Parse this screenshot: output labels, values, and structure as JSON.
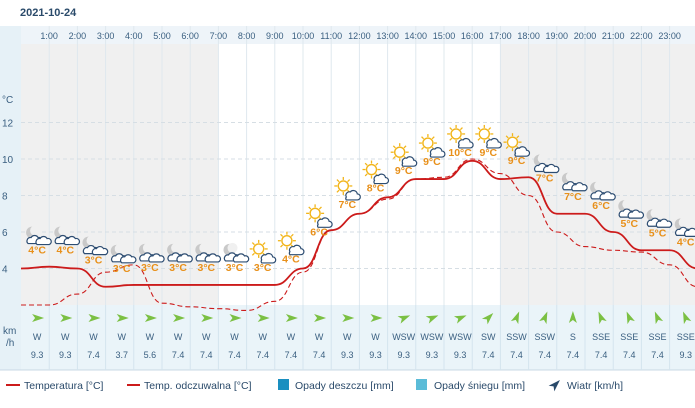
{
  "date": "2021-10-24",
  "chart_data": {
    "type": "line",
    "hours": [
      "1:00",
      "2:00",
      "3:00",
      "4:00",
      "5:00",
      "6:00",
      "7:00",
      "8:00",
      "9:00",
      "10:00",
      "11:00",
      "12:00",
      "13:00",
      "14:00",
      "15:00",
      "16:00",
      "17:00",
      "18:00",
      "19:00",
      "20:00",
      "21:00",
      "22:00",
      "23:00"
    ],
    "y_unit": "°C",
    "y_ticks": [
      4,
      6,
      8,
      10,
      12
    ],
    "ylim": [
      2,
      14
    ],
    "series": [
      {
        "name": "Temperatura [°C]",
        "color": "#cc1b1b",
        "x": [
          0,
          1,
          2,
          3,
          4,
          5,
          6,
          7,
          8,
          9,
          10,
          11,
          12,
          13,
          14,
          15,
          16,
          17,
          18,
          19,
          20,
          21,
          22,
          23,
          24
        ],
        "values": [
          4,
          4.1,
          4,
          3,
          3.1,
          3.1,
          3.1,
          3.1,
          3.1,
          3.1,
          4,
          6.1,
          7,
          7.9,
          8.9,
          8.9,
          9.9,
          8.9,
          9,
          7,
          7,
          6,
          5,
          5,
          4
        ]
      },
      {
        "name": "Temp. odczuwalna [°C]",
        "color": "#cc1b1b",
        "dash": true,
        "x": [
          0,
          1,
          2,
          3,
          4,
          5,
          6,
          7,
          8,
          9,
          10,
          11,
          12,
          13,
          14,
          15,
          16,
          17,
          18,
          19,
          20,
          21,
          22,
          23,
          24
        ],
        "values": [
          2,
          2,
          2.6,
          3.8,
          4.2,
          2.1,
          1.9,
          1.8,
          1.7,
          2.2,
          3.8,
          6.1,
          7,
          7.8,
          8.9,
          9,
          10,
          9.2,
          8,
          6,
          5.2,
          5,
          4.9,
          4.2,
          3
        ]
      }
    ],
    "hour_temp_labels": [
      "4°C",
      "4°C",
      "3°C",
      "3°C",
      "3°C",
      "3°C",
      "3°C",
      "3°C",
      "3°C",
      "4°C",
      "6°C",
      "7°C",
      "8°C",
      "9°C",
      "9°C",
      "10°C",
      "9°C",
      "9°C",
      "7°C",
      "7°C",
      "6°C",
      "5°C",
      "5°C",
      "4°C"
    ],
    "hour_icons": [
      "night-cloudy",
      "night-cloudy",
      "night-cloudy",
      "night-cloudy",
      "night-cloudy",
      "night-cloudy",
      "night-cloudy",
      "night-cloudy",
      "partly-sunny",
      "partly-sunny",
      "partly-sunny",
      "partly-sunny",
      "partly-sunny",
      "partly-sunny",
      "partly-sunny",
      "partly-sunny",
      "partly-sunny",
      "partly-sunny",
      "night-cloudy",
      "night-cloudy",
      "night-cloudy",
      "night-cloudy",
      "night-cloudy",
      "night-cloudy"
    ],
    "wind_unit": "km\n/h",
    "wind_directions": [
      "W",
      "W",
      "W",
      "W",
      "W",
      "W",
      "W",
      "W",
      "W",
      "W",
      "W",
      "W",
      "W",
      "WSW",
      "WSW",
      "WSW",
      "SW",
      "SSW",
      "SSW",
      "S",
      "SSE",
      "SSE",
      "SSE",
      "SSE"
    ],
    "wind_rotation_deg": [
      90,
      90,
      90,
      90,
      90,
      90,
      90,
      90,
      90,
      90,
      90,
      90,
      90,
      67.5,
      67.5,
      67.5,
      45,
      22.5,
      22.5,
      0,
      -22.5,
      -22.5,
      -22.5,
      -22.5
    ],
    "wind_speeds": [
      "9.3",
      "9.3",
      "7.4",
      "3.7",
      "5.6",
      "7.4",
      "7.4",
      "7.4",
      "7.4",
      "7.4",
      "7.4",
      "9.3",
      "9.3",
      "9.3",
      "9.3",
      "9.3",
      "7.4",
      "7.4",
      "7.4",
      "7.4",
      "7.4",
      "7.4",
      "7.4",
      "9.3"
    ],
    "shaded_hours_night": [
      [
        0,
        7
      ],
      [
        17,
        24
      ]
    ],
    "legend": [
      "Temperatura [°C]",
      "Temp. odczuwalna [°C]",
      "Opady deszczu [mm]",
      "Opady śniegu [mm]",
      "Wiatr [km/h]"
    ],
    "colors": {
      "rain": "#1a8fc0",
      "snow": "#5bbcd8",
      "line": "#cc1b1b",
      "wind_arrow": "#7bc043",
      "wind_dir_arrow": "#2a4a6a"
    }
  }
}
